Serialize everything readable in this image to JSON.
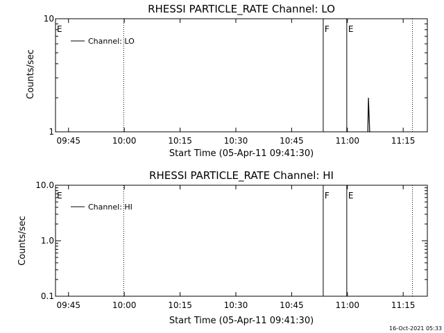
{
  "footer": {
    "timestamp": "16-Oct-2021 05:33"
  },
  "chart_data": [
    {
      "type": "line",
      "title": "RHESSI PARTICLE_RATE Channel: LO",
      "xlabel": "Start Time (05-Apr-11 09:41:30)",
      "ylabel": "Counts/sec",
      "yscale": "log",
      "ylim": [
        1,
        10
      ],
      "ytick_values": [
        1,
        10
      ],
      "ytick_labels": [
        "1",
        "10"
      ],
      "xlim": [
        "09:41:30",
        "11:21:30"
      ],
      "xtick_values": [
        "09:45",
        "10:00",
        "10:15",
        "10:30",
        "10:45",
        "11:00",
        "11:15"
      ],
      "xtick_labels": [
        "09:45",
        "10:00",
        "10:15",
        "10:30",
        "10:45",
        "11:00",
        "11:15"
      ],
      "legend": {
        "position": "top-left",
        "entries": [
          "Channel: LO"
        ]
      },
      "series": [
        {
          "name": "Channel: LO",
          "color": "#000000",
          "x": [
            "11:05:30",
            "11:05:40",
            "11:05:50",
            "11:06:00",
            "11:06:10"
          ],
          "values": [
            1,
            2.0,
            1.4,
            1,
            1
          ]
        }
      ],
      "event_lines": [
        {
          "time": "09:41:30",
          "label": "E",
          "style": "solid"
        },
        {
          "time": "09:59:50",
          "label": "",
          "style": "dotted"
        },
        {
          "time": "10:53:30",
          "label": "F",
          "style": "solid"
        },
        {
          "time": "10:59:50",
          "label": "E",
          "style": "solid"
        },
        {
          "time": "11:17:30",
          "label": "",
          "style": "dotted"
        }
      ]
    },
    {
      "type": "line",
      "title": "RHESSI PARTICLE_RATE Channel: HI",
      "xlabel": "Start Time (05-Apr-11 09:41:30)",
      "ylabel": "Counts/sec",
      "yscale": "log",
      "ylim": [
        0.1,
        10
      ],
      "ytick_values": [
        0.1,
        1,
        10
      ],
      "ytick_labels": [
        "0.1",
        "1.0",
        "10.0"
      ],
      "xlim": [
        "09:41:30",
        "11:21:30"
      ],
      "xtick_values": [
        "09:45",
        "10:00",
        "10:15",
        "10:30",
        "10:45",
        "11:00",
        "11:15"
      ],
      "xtick_labels": [
        "09:45",
        "10:00",
        "10:15",
        "10:30",
        "10:45",
        "11:00",
        "11:15"
      ],
      "legend": {
        "position": "top-left",
        "entries": [
          "Channel: HI"
        ]
      },
      "series": [
        {
          "name": "Channel: HI",
          "color": "#000000",
          "x": [],
          "values": []
        }
      ],
      "event_lines": [
        {
          "time": "09:41:30",
          "label": "E",
          "style": "solid"
        },
        {
          "time": "09:59:50",
          "label": "",
          "style": "dotted"
        },
        {
          "time": "10:53:30",
          "label": "F",
          "style": "solid"
        },
        {
          "time": "10:59:50",
          "label": "E",
          "style": "solid"
        },
        {
          "time": "11:17:30",
          "label": "",
          "style": "dotted"
        }
      ]
    }
  ]
}
